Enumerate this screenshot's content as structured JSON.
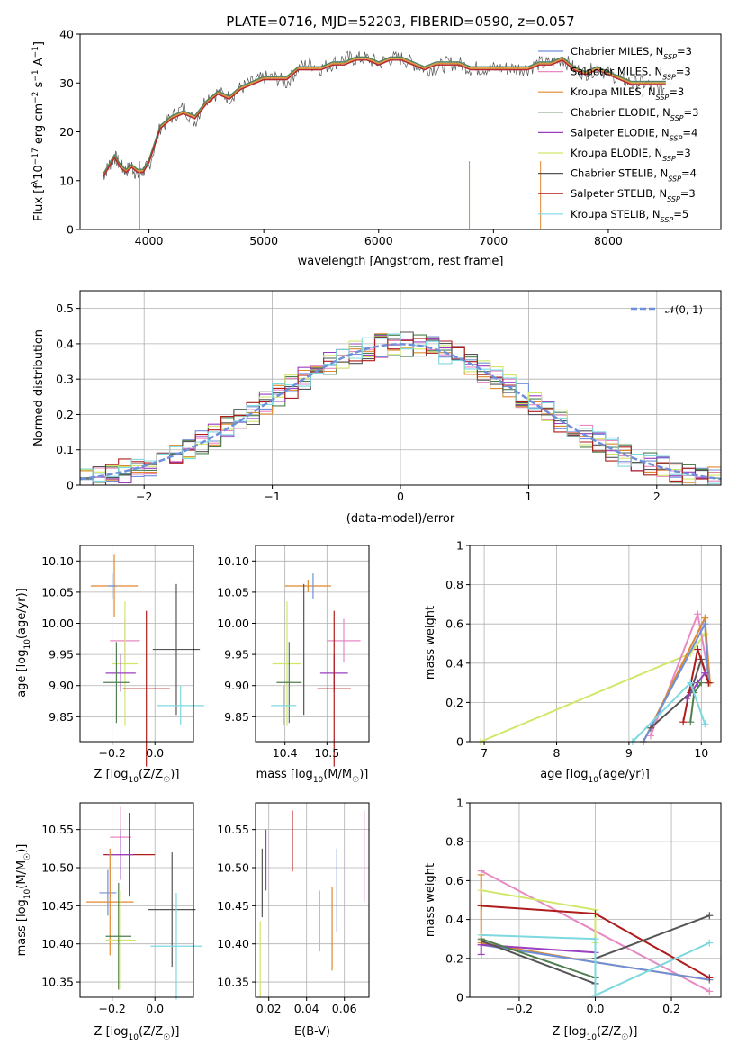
{
  "colors": {
    "chabrier_miles": "#6f90d8",
    "salpeter_miles": "#e78ac3",
    "kroupa_miles": "#e0882e",
    "chabrier_elodie": "#4f7f4f",
    "salpeter_elodie": "#9a3fbf",
    "kroupa_elodie": "#cfe86a",
    "chabrier_stelib": "#555555",
    "salpeter_stelib": "#b01c1c",
    "kroupa_stelib": "#7dd8e0",
    "normal_curve": "#6f90d8",
    "grid": "#b0b0b0"
  },
  "chart_data": [
    {
      "id": "spectrum",
      "type": "line",
      "title": "PLATE=0716, MJD=52203, FIBERID=0590, z=0.057",
      "xlabel": "wavelength [Angstrom, rest frame]",
      "ylabel": "Flux [f$_\\lambda$10$^{-17}$ erg cm$^{-2}$ s$^{-1}$ A$^{-1}$]",
      "ylabel_parts": [
        "Flux [f",
        "λ",
        "10",
        "−17",
        " erg cm",
        "−2",
        " s",
        "−1",
        " A",
        "−1",
        "]"
      ],
      "xlim": [
        3400,
        8980
      ],
      "ylim": [
        0,
        40
      ],
      "xticks": [
        4000,
        5000,
        6000,
        7000,
        8000
      ],
      "yticks": [
        0,
        10,
        20,
        30,
        40
      ],
      "grid": false,
      "legend_position": "right",
      "legend": [
        {
          "label": "Chabrier MILES, N",
          "sub": "SSP",
          "suffix": "=3",
          "color_key": "chabrier_miles"
        },
        {
          "label": "Salpeter MILES, N",
          "sub": "SSP",
          "suffix": "=3",
          "color_key": "salpeter_miles"
        },
        {
          "label": "Kroupa MILES, N",
          "sub": "SSP",
          "suffix": "=3",
          "color_key": "kroupa_miles"
        },
        {
          "label": "Chabrier ELODIE, N",
          "sub": "SSP",
          "suffix": "=3",
          "color_key": "chabrier_elodie"
        },
        {
          "label": "Salpeter ELODIE, N",
          "sub": "SSP",
          "suffix": "=4",
          "color_key": "salpeter_elodie"
        },
        {
          "label": "Kroupa ELODIE, N",
          "sub": "SSP",
          "suffix": "=3",
          "color_key": "kroupa_elodie"
        },
        {
          "label": "Chabrier STELIB, N",
          "sub": "SSP",
          "suffix": "=4",
          "color_key": "chabrier_stelib"
        },
        {
          "label": "Salpeter STELIB, N",
          "sub": "SSP",
          "suffix": "=3",
          "color_key": "salpeter_stelib"
        },
        {
          "label": "Kroupa STELIB, N",
          "sub": "SSP",
          "suffix": "=5",
          "color_key": "kroupa_stelib"
        }
      ],
      "data_spectrum": {
        "x": [
          3600,
          3650,
          3700,
          3750,
          3800,
          3850,
          3900,
          3950,
          4000,
          4100,
          4200,
          4300,
          4400,
          4500,
          4600,
          4700,
          4800,
          4900,
          5000,
          5100,
          5200,
          5300,
          5400,
          5500,
          5600,
          5700,
          5800,
          5900,
          6000,
          6100,
          6200,
          6300,
          6400,
          6500,
          6600,
          6700,
          6800,
          6900,
          7000,
          7100,
          7200,
          7300,
          7400,
          7500,
          7600,
          7700,
          7800,
          7900,
          8000,
          8100,
          8200,
          8300,
          8400,
          8500
        ],
        "y": [
          11,
          13,
          15,
          13,
          12,
          13,
          11,
          12,
          13,
          21,
          23,
          25,
          22,
          27,
          28,
          27,
          29,
          30,
          31,
          31,
          30,
          33,
          34,
          33,
          34,
          35,
          35,
          35,
          34,
          35,
          35,
          34,
          33,
          33,
          34,
          34,
          33,
          33,
          33,
          33,
          33,
          33,
          34,
          34,
          35,
          33,
          32,
          33,
          32,
          31,
          30,
          30,
          29,
          29
        ]
      },
      "models_flux": [
        11,
        13,
        15,
        13,
        12,
        13,
        12,
        12,
        14,
        21,
        23,
        24,
        23,
        26,
        28,
        27,
        29,
        30,
        31,
        31,
        31,
        33,
        33,
        33,
        34,
        34,
        35,
        35,
        34,
        35,
        35,
        34,
        33,
        34,
        34,
        34,
        33,
        33,
        33,
        33,
        33,
        33,
        34,
        34,
        35,
        33,
        32,
        33,
        32,
        31,
        30,
        30,
        30,
        30
      ]
    },
    {
      "id": "residuals",
      "type": "line",
      "xlabel": "(data-model)/error",
      "ylabel": "Normed distribution",
      "xlim": [
        -2.5,
        2.5
      ],
      "ylim": [
        0,
        0.55
      ],
      "xticks": [
        -2,
        -1,
        0,
        1,
        2
      ],
      "yticks": [
        0.0,
        0.1,
        0.2,
        0.3,
        0.4,
        0.5
      ],
      "grid": true,
      "legend_position": "top-right",
      "normal_label": "𝒩(0, 1)"
    },
    {
      "id": "age_vs_Z",
      "type": "scatter",
      "xlabel": "Z [log10(Z/Z☉)]",
      "xlabel_parts": [
        "Z [log",
        "10",
        "(Z/Z",
        "☉",
        ")]"
      ],
      "ylabel_parts": [
        "age  [log",
        "10",
        "(age/yr)]"
      ],
      "xlim": [
        -0.35,
        0.18
      ],
      "ylim": [
        9.81,
        10.125
      ],
      "xticks": [
        -0.2,
        0.0
      ],
      "xtick_labels": [
        "−0.2",
        "0.0"
      ],
      "yticks": [
        9.85,
        9.9,
        9.95,
        10.0,
        10.05,
        10.1
      ],
      "ytick_labels": [
        "9.85",
        "9.90",
        "9.95",
        "10.00",
        "10.05",
        "10.10"
      ],
      "grid": true,
      "points": [
        {
          "model": "kroupa_miles",
          "x": -0.19,
          "y": 10.06,
          "xerr": 0.11,
          "yerr": 0.05
        },
        {
          "model": "chabrier_miles",
          "x": -0.2,
          "y": 10.06,
          "xerr": 0.02,
          "yerr": 0.02
        },
        {
          "model": "salpeter_miles",
          "x": -0.14,
          "y": 9.972,
          "xerr": 0.07,
          "yerr": 0.035
        },
        {
          "model": "chabrier_stelib",
          "x": 0.1,
          "y": 9.958,
          "xerr": 0.11,
          "yerr": 0.105
        },
        {
          "model": "kroupa_elodie",
          "x": -0.14,
          "y": 9.935,
          "xerr": 0.06,
          "yerr": 0.1
        },
        {
          "model": "salpeter_elodie",
          "x": -0.16,
          "y": 9.92,
          "xerr": 0.07,
          "yerr": 0.03
        },
        {
          "model": "chabrier_elodie",
          "x": -0.18,
          "y": 9.905,
          "xerr": 0.06,
          "yerr": 0.065
        },
        {
          "model": "salpeter_stelib",
          "x": -0.04,
          "y": 9.895,
          "xerr": 0.11,
          "yerr": 0.125
        },
        {
          "model": "kroupa_stelib",
          "x": 0.12,
          "y": 9.868,
          "xerr": 0.11,
          "yerr": 0.032
        }
      ]
    },
    {
      "id": "age_vs_mass",
      "type": "scatter",
      "xlabel_parts": [
        "mass [log",
        "10",
        "(M/M",
        "☉",
        ")]"
      ],
      "xlim": [
        10.33,
        10.6
      ],
      "ylim": [
        9.81,
        10.125
      ],
      "xticks": [
        10.4,
        10.5
      ],
      "xtick_labels": [
        "10.4",
        "10.5"
      ],
      "yticks": [
        9.85,
        9.9,
        9.95,
        10.0,
        10.05,
        10.1
      ],
      "ytick_labels": [
        "9.85",
        "9.90",
        "9.95",
        "10.00",
        "10.05",
        "10.10"
      ],
      "grid": true,
      "points": [
        {
          "model": "kroupa_miles",
          "x": 10.455,
          "y": 10.06,
          "xerr": 0.055,
          "yerr": 0.01
        },
        {
          "model": "chabrier_miles",
          "x": 10.467,
          "y": 10.06,
          "xerr": 0.0,
          "yerr": 0.02
        },
        {
          "model": "salpeter_miles",
          "x": 10.54,
          "y": 9.972,
          "xerr": 0.04,
          "yerr": 0.035
        },
        {
          "model": "chabrier_stelib",
          "x": 10.445,
          "y": 9.958,
          "xerr": 0.0,
          "yerr": 0.105
        },
        {
          "model": "kroupa_elodie",
          "x": 10.405,
          "y": 9.935,
          "xerr": 0.035,
          "yerr": 0.1
        },
        {
          "model": "salpeter_elodie",
          "x": 10.517,
          "y": 9.92,
          "xerr": 0.033,
          "yerr": 0.03
        },
        {
          "model": "chabrier_elodie",
          "x": 10.41,
          "y": 9.905,
          "xerr": 0.03,
          "yerr": 0.065
        },
        {
          "model": "salpeter_stelib",
          "x": 10.517,
          "y": 9.895,
          "xerr": 0.04,
          "yerr": 0.125
        },
        {
          "model": "kroupa_stelib",
          "x": 10.397,
          "y": 9.868,
          "xerr": 0.03,
          "yerr": 0.032
        }
      ]
    },
    {
      "id": "weight_vs_age",
      "type": "line",
      "xlabel_parts": [
        "age  [log",
        "10",
        "(age/yr)]"
      ],
      "ylabel": "mass weight",
      "xlim": [
        6.8,
        10.27
      ],
      "ylim": [
        0,
        1.0
      ],
      "xticks": [
        7,
        8,
        9,
        10
      ],
      "yticks": [
        0.0,
        0.2,
        0.4,
        0.6,
        0.8,
        1.0
      ],
      "grid": true,
      "series": [
        {
          "model": "kroupa_elodie",
          "x": [
            6.95,
            9.85,
            10.05
          ],
          "y": [
            0.0,
            0.45,
            0.55
          ]
        },
        {
          "model": "salpeter_miles",
          "x": [
            9.3,
            9.95,
            10.12
          ],
          "y": [
            0.03,
            0.65,
            0.3
          ]
        },
        {
          "model": "kroupa_miles",
          "x": [
            9.2,
            10.05,
            10.12
          ],
          "y": [
            0.0,
            0.63,
            0.3
          ]
        },
        {
          "model": "chabrier_miles",
          "x": [
            9.2,
            10.05,
            10.1
          ],
          "y": [
            0.0,
            0.6,
            0.3
          ]
        },
        {
          "model": "chabrier_stelib",
          "x": [
            9.3,
            9.85,
            10.0,
            10.1
          ],
          "y": [
            0.07,
            0.25,
            0.42,
            0.3
          ]
        },
        {
          "model": "salpeter_stelib",
          "x": [
            9.75,
            9.95,
            10.1
          ],
          "y": [
            0.1,
            0.47,
            0.3
          ]
        },
        {
          "model": "salpeter_elodie",
          "x": [
            9.8,
            9.95,
            10.05
          ],
          "y": [
            0.22,
            0.3,
            0.35
          ]
        },
        {
          "model": "chabrier_elodie",
          "x": [
            9.85,
            9.9,
            10.0
          ],
          "y": [
            0.1,
            0.25,
            0.3
          ]
        },
        {
          "model": "kroupa_stelib",
          "x": [
            9.05,
            9.85,
            10.05
          ],
          "y": [
            0.0,
            0.3,
            0.09
          ]
        }
      ]
    },
    {
      "id": "mass_vs_Z",
      "type": "scatter",
      "xlabel_parts": [
        "Z [log",
        "10",
        "(Z/Z",
        "☉",
        ")]"
      ],
      "ylabel_parts": [
        "mass [log",
        "10",
        "(M/M",
        "☉",
        ")]"
      ],
      "xlim": [
        -0.35,
        0.18
      ],
      "ylim": [
        10.33,
        10.585
      ],
      "xticks": [
        -0.2,
        0.0
      ],
      "xtick_labels": [
        "−0.2",
        "0.0"
      ],
      "yticks": [
        10.35,
        10.4,
        10.45,
        10.5,
        10.55
      ],
      "ytick_labels": [
        "10.35",
        "10.40",
        "10.45",
        "10.50",
        "10.55"
      ],
      "grid": true,
      "points": [
        {
          "model": "salpeter_miles",
          "x": -0.16,
          "y": 10.54,
          "xerr": 0.05,
          "yerr": 0.04
        },
        {
          "model": "salpeter_stelib",
          "x": -0.12,
          "y": 10.517,
          "xerr": 0.12,
          "yerr": 0.055
        },
        {
          "model": "salpeter_elodie",
          "x": -0.16,
          "y": 10.517,
          "xerr": 0.06,
          "yerr": 0.033
        },
        {
          "model": "chabrier_miles",
          "x": -0.22,
          "y": 10.467,
          "xerr": 0.04,
          "yerr": 0.03
        },
        {
          "model": "kroupa_miles",
          "x": -0.21,
          "y": 10.455,
          "xerr": 0.11,
          "yerr": 0.07
        },
        {
          "model": "chabrier_stelib",
          "x": 0.08,
          "y": 10.445,
          "xerr": 0.11,
          "yerr": 0.075
        },
        {
          "model": "kroupa_elodie",
          "x": -0.16,
          "y": 10.405,
          "xerr": 0.07,
          "yerr": 0.065
        },
        {
          "model": "chabrier_elodie",
          "x": -0.17,
          "y": 10.41,
          "xerr": 0.06,
          "yerr": 0.07
        },
        {
          "model": "kroupa_stelib",
          "x": 0.1,
          "y": 10.397,
          "xerr": 0.12,
          "yerr": 0.07
        }
      ]
    },
    {
      "id": "mass_vs_ebv",
      "type": "scatter",
      "xlabel": "E(B-V)",
      "xlim": [
        0.013,
        0.073
      ],
      "ylim": [
        10.33,
        10.585
      ],
      "xticks": [
        0.02,
        0.04,
        0.06
      ],
      "xtick_labels": [
        "0.02",
        "0.04",
        "0.06"
      ],
      "yticks": [
        10.35,
        10.4,
        10.45,
        10.5,
        10.55
      ],
      "ytick_labels": [
        "10.35",
        "10.40",
        "10.45",
        "10.50",
        "10.55"
      ],
      "grid": true,
      "points": [
        {
          "model": "kroupa_elodie",
          "x": 0.0155,
          "y": 10.38,
          "xerr": 0.0,
          "yerr": 0.05
        },
        {
          "model": "chabrier_stelib",
          "x": 0.0165,
          "y": 10.48,
          "xerr": 0.0,
          "yerr": 0.045
        },
        {
          "model": "salpeter_elodie",
          "x": 0.0185,
          "y": 10.51,
          "xerr": 0.0,
          "yerr": 0.04
        },
        {
          "model": "salpeter_stelib",
          "x": 0.0325,
          "y": 10.535,
          "xerr": 0.0,
          "yerr": 0.04
        },
        {
          "model": "kroupa_stelib",
          "x": 0.047,
          "y": 10.43,
          "xerr": 0.0,
          "yerr": 0.04
        },
        {
          "model": "kroupa_miles",
          "x": 0.0535,
          "y": 10.42,
          "xerr": 0.0,
          "yerr": 0.055
        },
        {
          "model": "chabrier_miles",
          "x": 0.056,
          "y": 10.47,
          "xerr": 0.0,
          "yerr": 0.055
        },
        {
          "model": "salpeter_miles",
          "x": 0.0705,
          "y": 10.515,
          "xerr": 0.0,
          "yerr": 0.06
        }
      ]
    },
    {
      "id": "weight_vs_Z",
      "type": "line",
      "xlabel_parts": [
        "Z [log",
        "10",
        "(Z/Z",
        "☉",
        ")]"
      ],
      "ylabel": "mass weight",
      "xlim": [
        -0.33,
        0.33
      ],
      "ylim": [
        0,
        1.0
      ],
      "xticks": [
        -0.2,
        0.0,
        0.2
      ],
      "xtick_labels": [
        "−0.2",
        "0.0",
        "0.2"
      ],
      "yticks": [
        0.0,
        0.2,
        0.4,
        0.6,
        0.8,
        1.0
      ],
      "grid": true,
      "series": [
        {
          "model": "salpeter_miles",
          "x": [
            -0.3,
            0.3
          ],
          "y": [
            0.65,
            0.03
          ]
        },
        {
          "model": "kroupa_miles",
          "x": [
            -0.3,
            -0.3,
            0.0,
            0.3
          ],
          "y": [
            0.63,
            0.28,
            0.18,
            0.09
          ]
        },
        {
          "model": "chabrier_miles",
          "x": [
            -0.3,
            0.0,
            0.3
          ],
          "y": [
            0.27,
            0.18,
            0.09
          ]
        },
        {
          "model": "kroupa_elodie",
          "x": [
            -0.3,
            0.0,
            0.0
          ],
          "y": [
            0.55,
            0.45,
            0.28
          ]
        },
        {
          "model": "salpeter_stelib",
          "x": [
            -0.3,
            0.0,
            0.3
          ],
          "y": [
            0.47,
            0.43,
            0.1
          ]
        },
        {
          "model": "salpeter_elodie",
          "x": [
            -0.3,
            -0.3,
            0.0
          ],
          "y": [
            0.22,
            0.27,
            0.23
          ]
        },
        {
          "model": "chabrier_elodie",
          "x": [
            -0.3,
            0.0
          ],
          "y": [
            0.3,
            0.1
          ]
        },
        {
          "model": "chabrier_stelib",
          "x": [
            -0.3,
            0.0,
            0.0,
            0.3
          ],
          "y": [
            0.29,
            0.07,
            0.2,
            0.42
          ]
        },
        {
          "model": "kroupa_stelib",
          "x": [
            -0.3,
            0.0,
            0.0,
            0.3
          ],
          "y": [
            0.32,
            0.3,
            0.01,
            0.28
          ]
        }
      ]
    }
  ]
}
